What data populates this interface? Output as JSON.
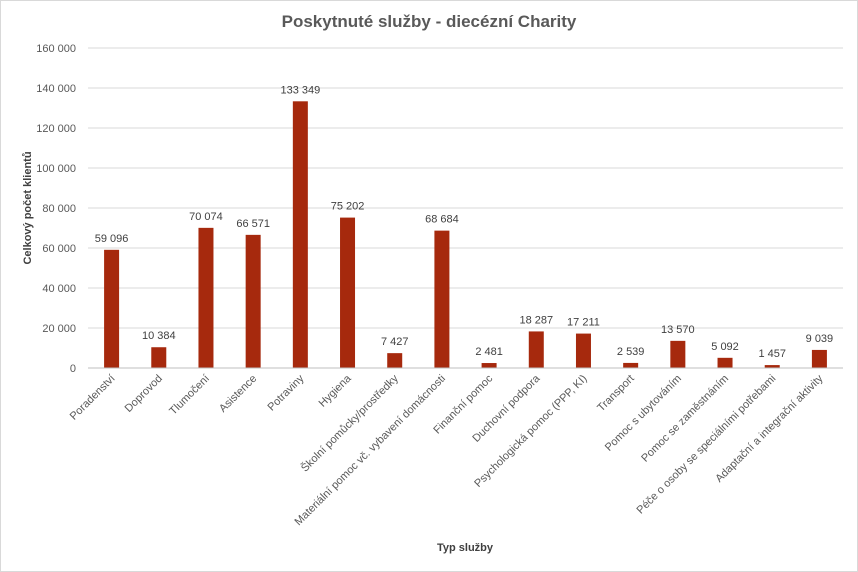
{
  "chart_data": {
    "type": "bar",
    "title": "Poskytnuté služby - diecézní Charity",
    "xlabel": "Typ služby",
    "ylabel": "Celkový počet klientů",
    "ylim": [
      0,
      160000
    ],
    "yticks": [
      0,
      20000,
      40000,
      60000,
      80000,
      100000,
      120000,
      140000,
      160000
    ],
    "ytick_labels": [
      "0",
      "20 000",
      "40 000",
      "60 000",
      "80 000",
      "100 000",
      "120 000",
      "140 000",
      "160 000"
    ],
    "grid": true,
    "legend": "none",
    "bar_color": "#a6290d",
    "categories": [
      "Poradenství",
      "Doprovod",
      "Tlumočení",
      "Asistence",
      "Potraviny",
      "Hygiena",
      "Školní pomůcky/prostředky",
      "Materiální pomoc vč. vybavení domácnosti",
      "Finanční pomoc",
      "Duchovní podpora",
      "Psychologická pomoc (PPP, KI)",
      "Transport",
      "Pomoc s ubytováním",
      "Pomoc se zaměstnáním",
      "Péče o osoby se speciálními potřebami",
      "Adaptační a integrační aktivity"
    ],
    "values": [
      59096,
      10384,
      70074,
      66571,
      133349,
      75202,
      7427,
      68684,
      2481,
      18287,
      17211,
      2539,
      13570,
      5092,
      1457,
      9039
    ],
    "value_labels": [
      "59 096",
      "10 384",
      "70 074",
      "66 571",
      "133 349",
      "75 202",
      "7 427",
      "68 684",
      "2 481",
      "18 287",
      "17 211",
      "2 539",
      "13 570",
      "5 092",
      "1 457",
      "9 039"
    ]
  }
}
